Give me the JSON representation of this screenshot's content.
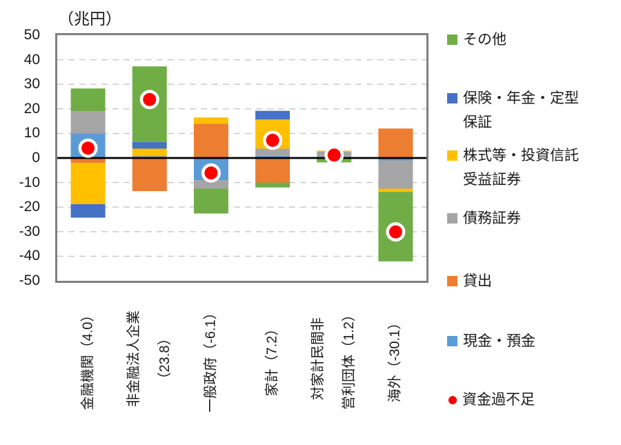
{
  "chart_data": {
    "type": "bar",
    "stacked": true,
    "unit_label": "（兆円）",
    "ylim": [
      -50,
      50
    ],
    "y_ticks": [
      50,
      40,
      30,
      20,
      10,
      0,
      -10,
      -20,
      -30,
      -40,
      -50
    ],
    "grid": "horizontal-dashed",
    "legend_position": "right",
    "categories": [
      "金融機関",
      "非金融法人企業",
      "一般政府",
      "家計",
      "対家計民間非営利団体",
      "海外"
    ],
    "category_axis_labels": [
      [
        "金融機関（4.0）"
      ],
      [
        "非金融法人企業",
        "（23.8）"
      ],
      [
        "一般政府（-6.1）"
      ],
      [
        "家計（7.2）"
      ],
      [
        "対家計民間非",
        "営利団体（1.2）"
      ],
      [
        "海外（-30.1）"
      ]
    ],
    "series": [
      {
        "name": "現金・預金",
        "color": "#5B9BD5",
        "values": [
          10,
          0,
          -9,
          0.8,
          0,
          -1
        ]
      },
      {
        "name": "貸出",
        "color": "#ED7D31",
        "values": [
          -2,
          -13.5,
          14,
          -10,
          0,
          12
        ]
      },
      {
        "name": "債務証券",
        "color": "#A5A5A5",
        "values": [
          9,
          1,
          -3.5,
          3,
          2.6,
          -11.5
        ]
      },
      {
        "name": "株式等・投資信託受益証券",
        "color": "#FFC000",
        "values": [
          -16.8,
          2.8,
          2.5,
          11.9,
          0.4,
          -1.3
        ]
      },
      {
        "name": "保険・年金・定型保証",
        "color": "#4472C4",
        "values": [
          -5.5,
          2.7,
          0,
          3.5,
          0,
          0
        ]
      },
      {
        "name": "その他",
        "color": "#70AD47",
        "values": [
          9.3,
          30.8,
          -10.1,
          -2,
          -1.8,
          -28.3
        ]
      }
    ],
    "point_series": {
      "name": "資金過不足",
      "color": "#FF0000",
      "values": [
        4.0,
        23.8,
        -6.1,
        7.2,
        1.2,
        -30.1
      ]
    }
  },
  "legend": {
    "items": [
      {
        "label": "その他",
        "lines": [
          "その他"
        ],
        "swatch": "square",
        "color": "#70AD47"
      },
      {
        "label": "保険・年金・定型保証",
        "lines": [
          "保険・年金・定型",
          "保証"
        ],
        "swatch": "square",
        "color": "#4472C4"
      },
      {
        "label": "株式等・投資信託受益証券",
        "lines": [
          "株式等・投資信託",
          "受益証券"
        ],
        "swatch": "square",
        "color": "#FFC000"
      },
      {
        "label": "債務証券",
        "lines": [
          "債務証券"
        ],
        "swatch": "square",
        "color": "#A5A5A5"
      },
      {
        "label": "貸出",
        "lines": [
          "貸出"
        ],
        "swatch": "square",
        "color": "#ED7D31"
      },
      {
        "label": "現金・預金",
        "lines": [
          "現金・預金"
        ],
        "swatch": "square",
        "color": "#5B9BD5"
      },
      {
        "label": "資金過不足",
        "lines": [
          "資金過不足"
        ],
        "swatch": "dot",
        "color": "#FF0000"
      }
    ]
  },
  "colors": {
    "grid": "#C6C6C6",
    "frame": "#7F7F7F",
    "zero_line": "#000000",
    "background": "#FFFFFF"
  }
}
